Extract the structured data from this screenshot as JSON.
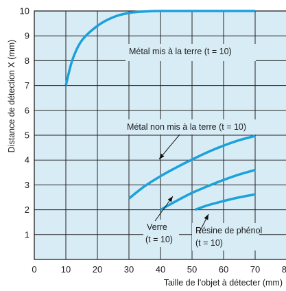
{
  "chart_data": {
    "type": "line",
    "title": "",
    "xlabel": "Taille de l'objet à détecter (mm)",
    "ylabel": "Distance de détection X (mm)",
    "xlim": [
      0,
      80
    ],
    "ylim": [
      0,
      10
    ],
    "x_ticks": [
      "0",
      "10",
      "20",
      "30",
      "40",
      "50",
      "60",
      "70",
      "80"
    ],
    "y_ticks": [
      "1",
      "2",
      "3",
      "4",
      "5",
      "6",
      "7",
      "8",
      "9",
      "10"
    ],
    "grid": true,
    "background_color": "#d8ecf6",
    "line_color": "#1ba1dc",
    "series": [
      {
        "name": "Métal mis à la terre (t = 10)",
        "x": [
          10,
          12,
          15,
          20,
          25,
          30,
          35,
          40,
          50,
          60,
          70
        ],
        "y": [
          7.0,
          8.0,
          8.8,
          9.4,
          9.75,
          9.92,
          9.98,
          10,
          10,
          10,
          10
        ]
      },
      {
        "name": "Métal non mis à la terre (t = 10)",
        "x": [
          30,
          35,
          40,
          45,
          50,
          55,
          60,
          65,
          70
        ],
        "y": [
          2.45,
          2.95,
          3.35,
          3.7,
          4.02,
          4.32,
          4.58,
          4.8,
          4.97
        ]
      },
      {
        "name": "Verre (t = 10)",
        "x": [
          40,
          45,
          50,
          55,
          60,
          65,
          70
        ],
        "y": [
          2.0,
          2.35,
          2.68,
          2.95,
          3.2,
          3.42,
          3.6
        ]
      },
      {
        "name": "Résine de phénol (t = 10)",
        "x": [
          51,
          55,
          60,
          65,
          70
        ],
        "y": [
          2.0,
          2.18,
          2.35,
          2.5,
          2.62
        ]
      }
    ],
    "annotations": [
      {
        "id": "ann1",
        "lines": [
          "Métal mis à la terre (t = 10)"
        ]
      },
      {
        "id": "ann2",
        "lines": [
          "Métal non mis à la terre (t = 10)"
        ]
      },
      {
        "id": "ann3",
        "lines": [
          "Verre",
          "(t = 10)"
        ]
      },
      {
        "id": "ann4",
        "lines": [
          "Résine de phénol",
          "(t = 10)"
        ]
      }
    ]
  }
}
